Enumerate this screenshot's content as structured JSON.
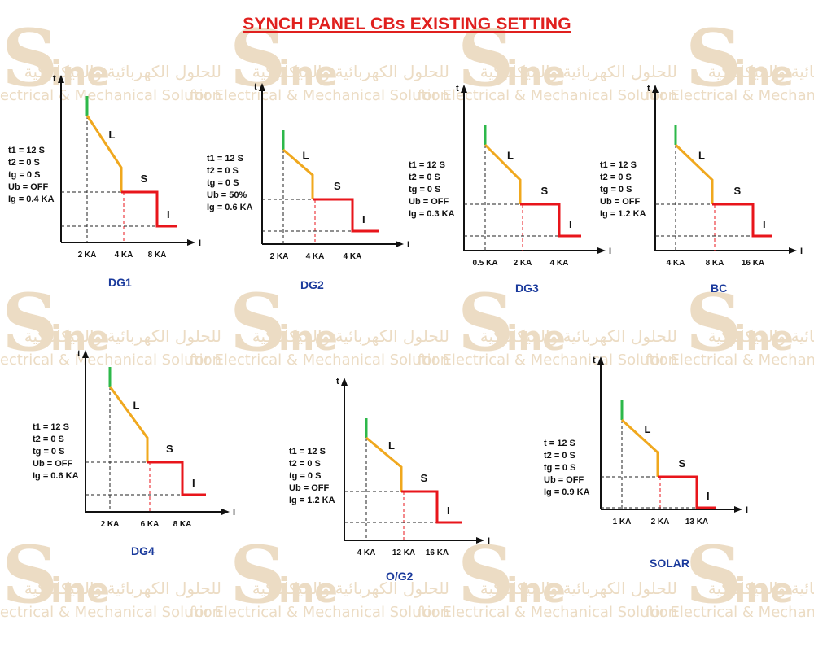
{
  "title": "SYNCH PANEL CBs EXISTING SETTING",
  "watermark": {
    "arabic": "للحلول الكهربائية والميكانيكية",
    "english": "for Electrical & Mechanical Solution",
    "brand_s": "S",
    "brand_ine": "ine"
  },
  "axis_labels": {
    "t": "t",
    "i": "I"
  },
  "region_labels": {
    "l": "L",
    "s": "S",
    "i": "I"
  },
  "colors": {
    "green": "#2db84a",
    "orange": "#f0a81e",
    "red": "#e8151b",
    "title": "#e0201e",
    "label": "#1a3a9c"
  },
  "panels": [
    {
      "name": "DG1",
      "settings": [
        "t1 = 12 S",
        "t2 = 0 S",
        "tg = 0 S",
        "Ub = OFF",
        "Ig = 0.4 KA"
      ],
      "ticks": [
        "2 KA",
        "4 KA",
        "8 KA"
      ]
    },
    {
      "name": "DG2",
      "settings": [
        "t1 = 12 S",
        "t2 = 0 S",
        "tg = 0 S",
        "Ub = 50%",
        "Ig = 0.6 KA"
      ],
      "ticks": [
        "2 KA",
        "4 KA",
        "4 KA"
      ]
    },
    {
      "name": "DG3",
      "settings": [
        "t1 = 12 S",
        "t2 = 0 S",
        "tg = 0 S",
        "Ub = OFF",
        "Ig = 0.3 KA"
      ],
      "ticks": [
        "0.5 KA",
        "2 KA",
        "4 KA"
      ]
    },
    {
      "name": "BC",
      "settings": [
        "t1 = 12 S",
        "t2 = 0 S",
        "tg = 0 S",
        "Ub = OFF",
        "Ig = 1.2 KA"
      ],
      "ticks": [
        "4 KA",
        "8 KA",
        "16 KA"
      ]
    },
    {
      "name": "DG4",
      "settings": [
        "t1 = 12 S",
        "t2 = 0 S",
        "tg = 0 S",
        "Ub = OFF",
        "Ig = 0.6 KA"
      ],
      "ticks": [
        "2 KA",
        "6 KA",
        "8 KA"
      ]
    },
    {
      "name": "O/G2",
      "settings": [
        "t1 = 12 S",
        "t2 = 0 S",
        "tg = 0 S",
        "Ub = OFF",
        "Ig = 1.2 KA"
      ],
      "ticks": [
        "4 KA",
        "12 KA",
        "16 KA"
      ]
    },
    {
      "name": "SOLAR",
      "settings": [
        "t = 12 S",
        "t2 = 0 S",
        "tg = 0 S",
        "Ub = OFF",
        "Ig = 0.9 KA"
      ],
      "ticks": [
        "1 KA",
        "2 KA",
        "13 KA"
      ]
    }
  ]
}
